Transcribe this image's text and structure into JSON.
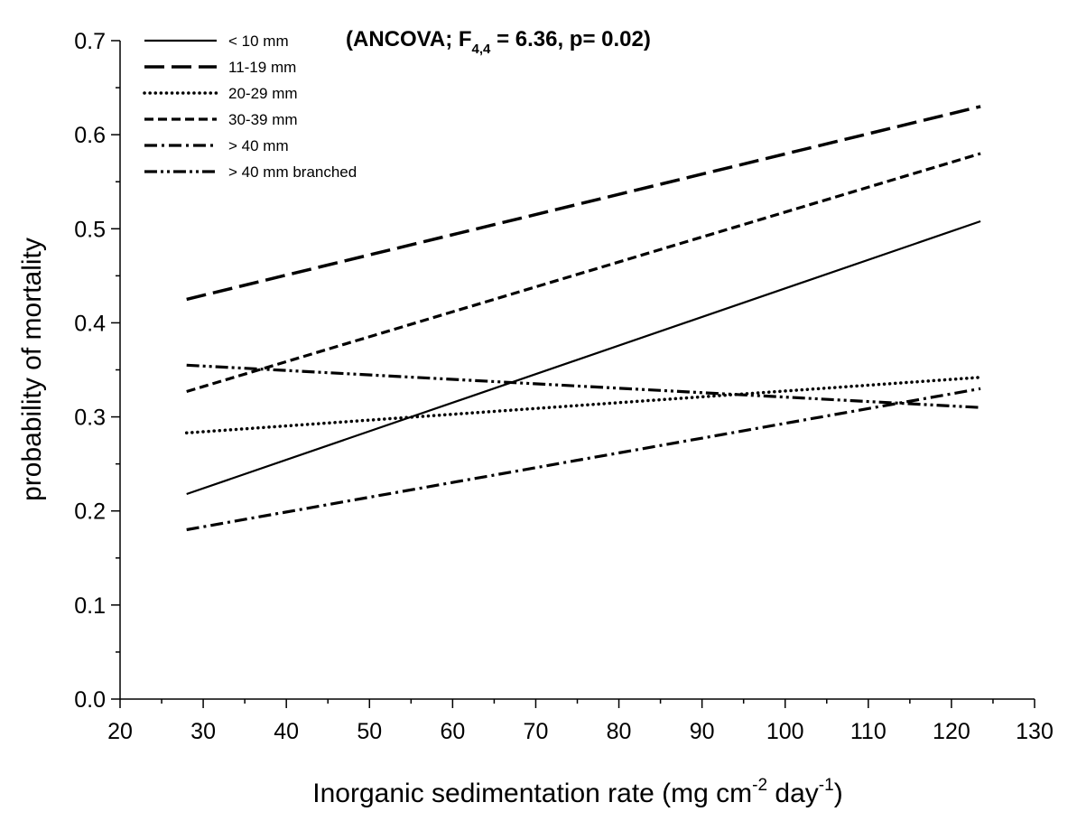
{
  "chart_data": {
    "type": "line",
    "title": "",
    "annotation": {
      "prefix": "(ANCOVA; F",
      "subscript": "4,4",
      "suffix": " = 6.36, p= 0.02)"
    },
    "xlabel": {
      "main": "Inorganic sedimentation rate (mg cm",
      "sup1": "-2",
      "mid": " day",
      "sup2": "-1",
      "end": ")"
    },
    "ylabel": "probability of mortality",
    "xlim": [
      20,
      130
    ],
    "ylim": [
      0,
      0.7
    ],
    "xticks": [
      "20",
      "30",
      "40",
      "50",
      "60",
      "70",
      "80",
      "90",
      "100",
      "110",
      "120",
      "130"
    ],
    "yticks": [
      "0.0",
      "0.1",
      "0.2",
      "0.3",
      "0.4",
      "0.5",
      "0.6",
      "0.7"
    ],
    "grid": false,
    "legend_position": "top-left",
    "series": [
      {
        "name": "< 10 mm",
        "style": "solid",
        "x": [
          28,
          123.5
        ],
        "y": [
          0.218,
          0.508
        ]
      },
      {
        "name": "11-19 mm",
        "style": "long-dash",
        "x": [
          28,
          123.5
        ],
        "y": [
          0.425,
          0.63
        ]
      },
      {
        "name": "20-29 mm",
        "style": "dotted",
        "x": [
          28,
          123.5
        ],
        "y": [
          0.283,
          0.342
        ]
      },
      {
        "name": "30-39 mm",
        "style": "short-dash",
        "x": [
          28,
          123.5
        ],
        "y": [
          0.327,
          0.58
        ]
      },
      {
        "name": "> 40 mm",
        "style": "dash-dot",
        "x": [
          28,
          123.5
        ],
        "y": [
          0.18,
          0.33
        ]
      },
      {
        "name": "> 40 mm branched",
        "style": "dash-dot-dot",
        "x": [
          28,
          123.5
        ],
        "y": [
          0.355,
          0.31
        ]
      }
    ]
  }
}
